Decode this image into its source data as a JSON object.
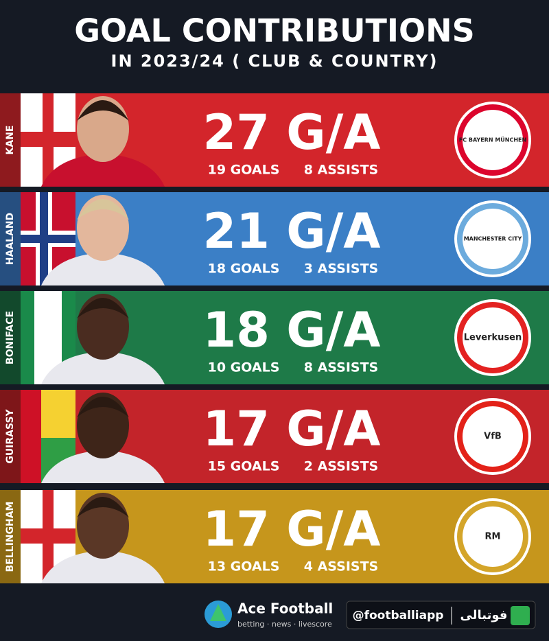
{
  "header": {
    "title": "GOAL CONTRIBUTIONS",
    "subtitle": "IN 2023/24 ( CLUB & COUNTRY)"
  },
  "rows": [
    {
      "name": "KANE",
      "total": "27 G/A",
      "goals": "19 GOALS",
      "assists": "8 ASSISTS",
      "badge": "FC BAYERN MÜNCHEN"
    },
    {
      "name": "HAALAND",
      "total": "21 G/A",
      "goals": "18 GOALS",
      "assists": "3 ASSISTS",
      "badge": "MANCHESTER CITY"
    },
    {
      "name": "BONIFACE",
      "total": "18 G/A",
      "goals": "10 GOALS",
      "assists": "8 ASSISTS",
      "badge": "Leverkusen"
    },
    {
      "name": "GUIRASSY",
      "total": "17 G/A",
      "goals": "15 GOALS",
      "assists": "2 ASSISTS",
      "badge": "VfB"
    },
    {
      "name": "BELLINGHAM",
      "total": "17 G/A",
      "goals": "13 GOALS",
      "assists": "4 ASSISTS",
      "badge": "RM"
    }
  ],
  "footer": {
    "brand": "Ace Football",
    "tagline": "betting · news · livescore",
    "handle": "@footballiapp",
    "app": "فوتبالی"
  }
}
